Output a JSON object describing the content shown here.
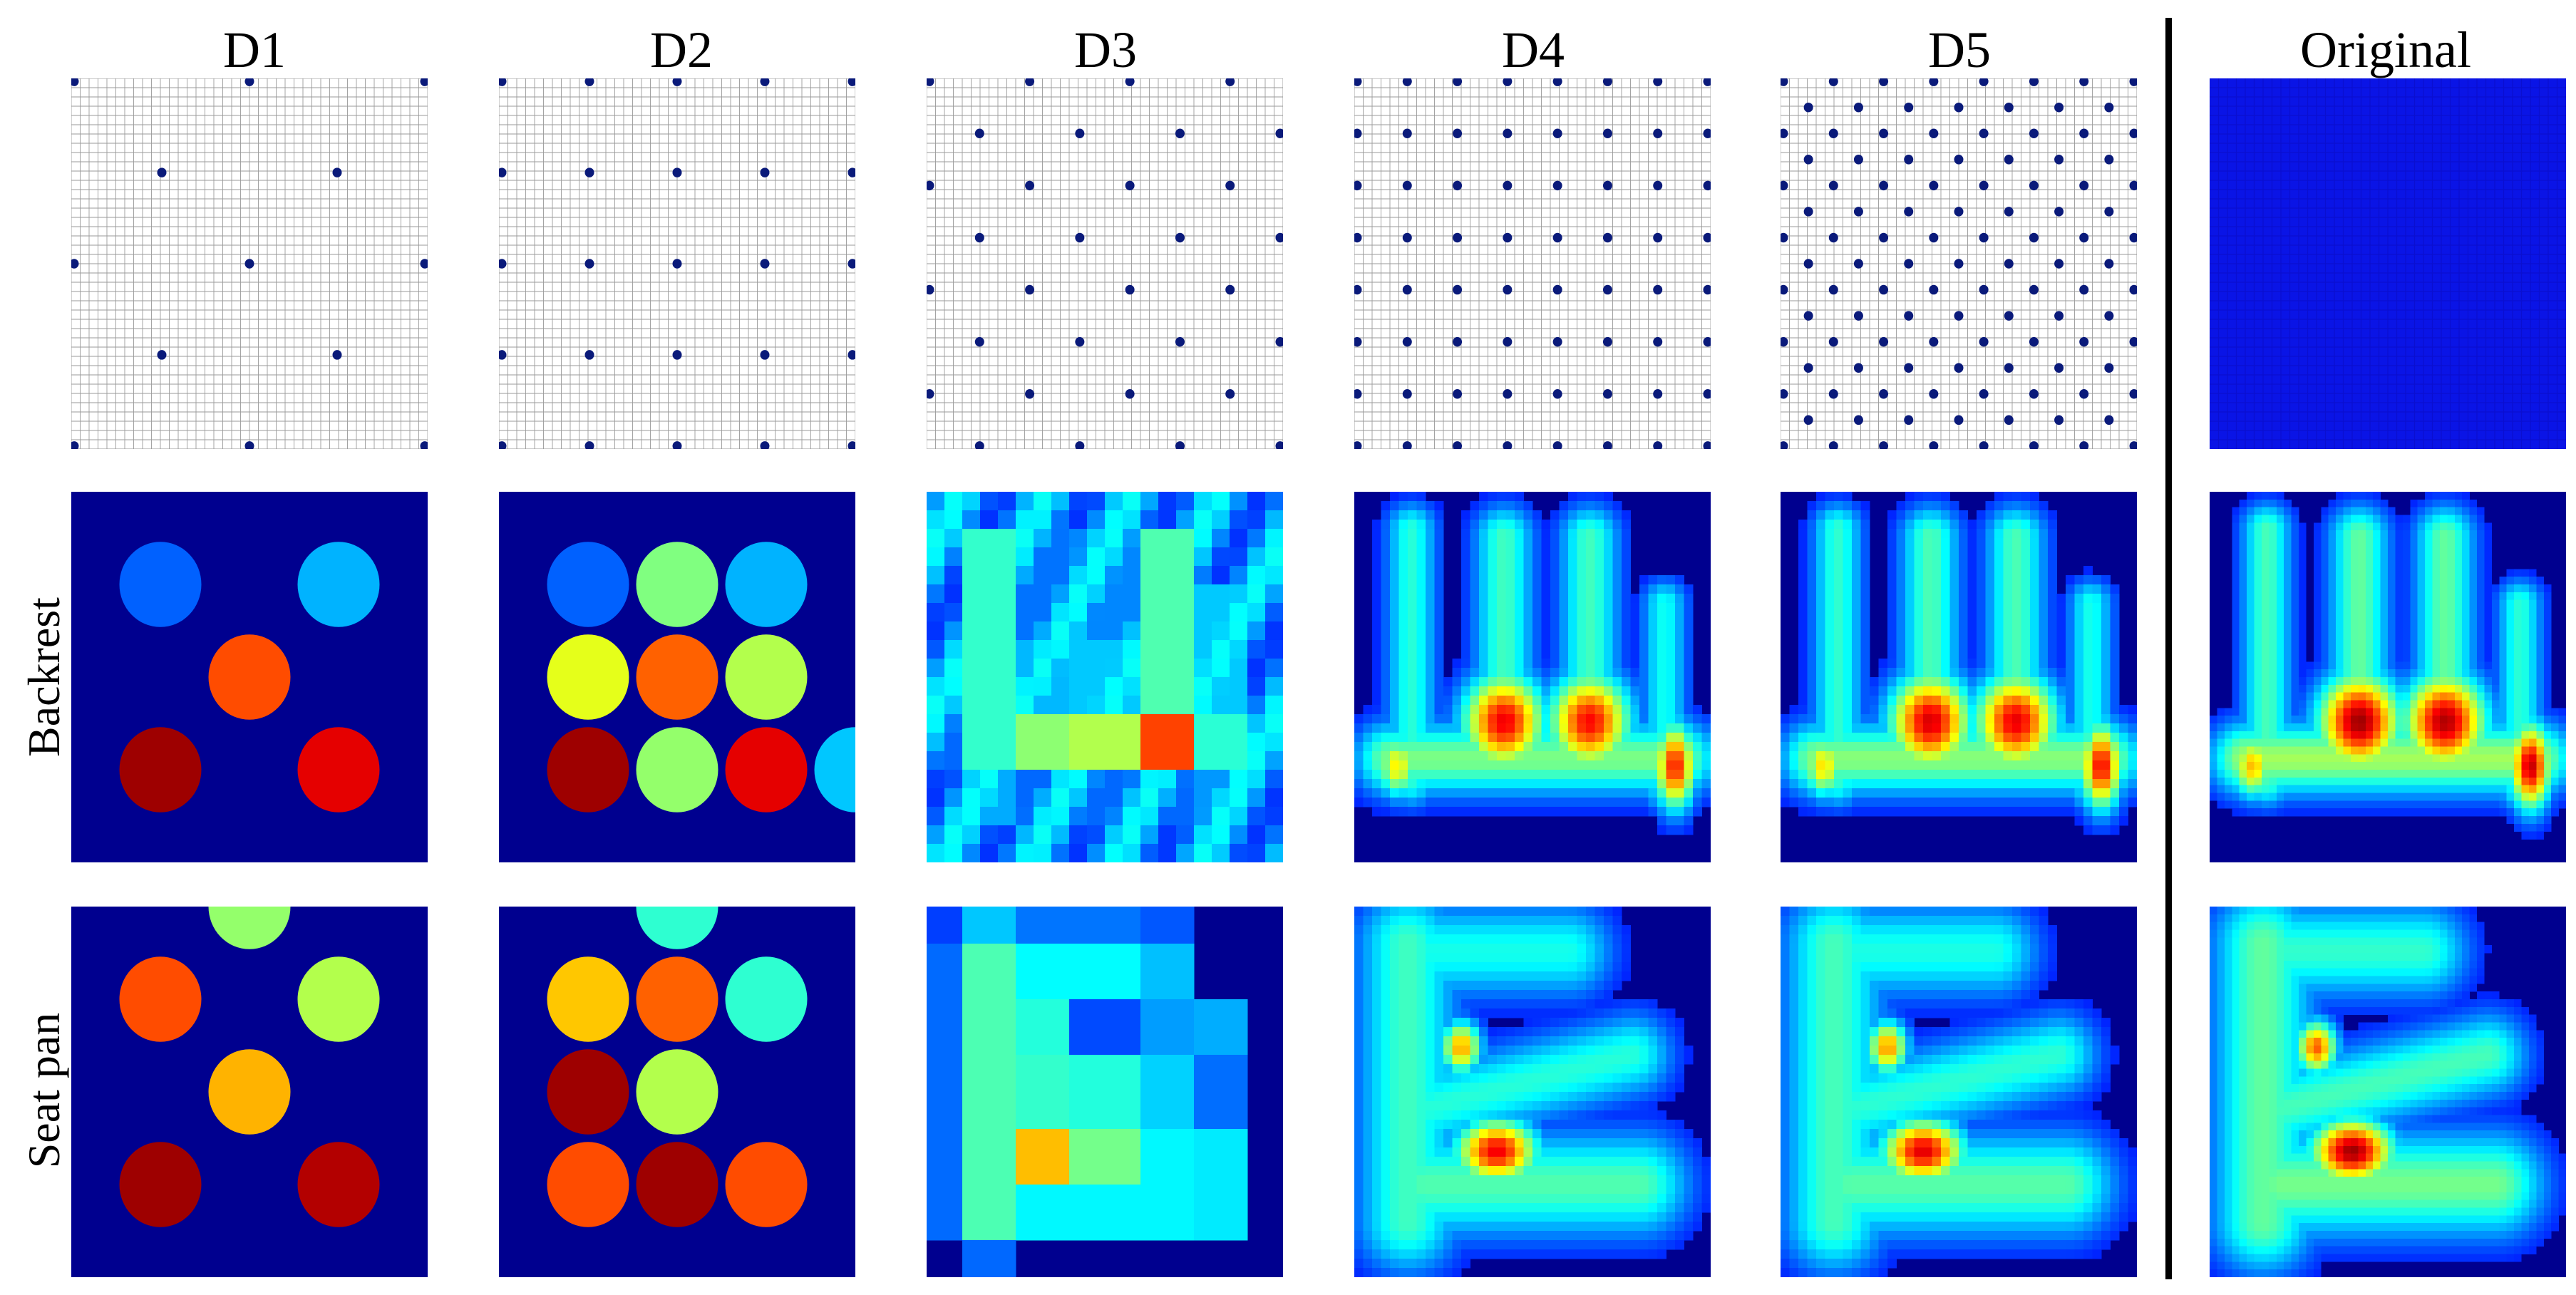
{
  "columns": [
    {
      "key": "d1",
      "title": "D1"
    },
    {
      "key": "d2",
      "title": "D2"
    },
    {
      "key": "d3",
      "title": "D3"
    },
    {
      "key": "d4",
      "title": "D4"
    },
    {
      "key": "d5",
      "title": "D5"
    },
    {
      "key": "original",
      "title": "Original"
    }
  ],
  "rows": {
    "layout": {
      "label": ""
    },
    "backrest": {
      "label": "Backrest"
    },
    "seat_pan": {
      "label": "Seat pan"
    }
  },
  "colors": {
    "grid_line": "#9a9a9a",
    "sensor_dot": "#0a1a7a",
    "background_blue": "#00008f",
    "original_layout": "#0a14e6"
  },
  "colormap": "jet",
  "layouts": {
    "d1": [
      [
        0,
        0
      ],
      [
        0.5,
        0
      ],
      [
        1,
        0
      ],
      [
        0.25,
        0.25
      ],
      [
        0.75,
        0.25
      ],
      [
        0,
        0.5
      ],
      [
        0.5,
        0.5
      ],
      [
        1,
        0.5
      ],
      [
        0.25,
        0.75
      ],
      [
        0.75,
        0.75
      ],
      [
        0,
        1
      ],
      [
        0.5,
        1
      ],
      [
        1,
        1
      ]
    ],
    "d2": [
      [
        0,
        0
      ],
      [
        0.25,
        0
      ],
      [
        0.5,
        0
      ],
      [
        0.75,
        0
      ],
      [
        1,
        0
      ],
      [
        0,
        0.25
      ],
      [
        0.25,
        0.25
      ],
      [
        0.5,
        0.25
      ],
      [
        0.75,
        0.25
      ],
      [
        1,
        0.25
      ],
      [
        0,
        0.5
      ],
      [
        0.25,
        0.5
      ],
      [
        0.5,
        0.5
      ],
      [
        0.75,
        0.5
      ],
      [
        1,
        0.5
      ],
      [
        0,
        0.75
      ],
      [
        0.25,
        0.75
      ],
      [
        0.5,
        0.75
      ],
      [
        0.75,
        0.75
      ],
      [
        1,
        0.75
      ],
      [
        0,
        1
      ],
      [
        0.25,
        1
      ],
      [
        0.5,
        1
      ],
      [
        0.75,
        1
      ],
      [
        1,
        1
      ]
    ],
    "d3_grid": 8,
    "d4_grid": 8,
    "d5_grid": 15
  },
  "discs": {
    "backrest": {
      "d1": [
        [
          0.25,
          0.25,
          0.22
        ],
        [
          0.75,
          0.25,
          0.3
        ],
        [
          0.5,
          0.5,
          0.8
        ],
        [
          0.25,
          0.75,
          0.97
        ],
        [
          0.75,
          0.75,
          0.9
        ]
      ],
      "d2": [
        [
          0.25,
          0.25,
          0.22
        ],
        [
          0.5,
          0.25,
          0.5
        ],
        [
          0.75,
          0.25,
          0.3
        ],
        [
          0.25,
          0.5,
          0.6
        ],
        [
          0.5,
          0.5,
          0.78
        ],
        [
          0.75,
          0.5,
          0.55
        ],
        [
          0.25,
          0.75,
          0.97
        ],
        [
          0.5,
          0.75,
          0.52
        ],
        [
          0.75,
          0.75,
          0.9
        ],
        [
          1.0,
          0.75,
          0.32
        ]
      ]
    },
    "seat_pan": {
      "d1": [
        [
          0.5,
          0.0,
          0.52
        ],
        [
          0.25,
          0.25,
          0.8
        ],
        [
          0.75,
          0.25,
          0.55
        ],
        [
          0.5,
          0.5,
          0.7
        ],
        [
          0.25,
          0.75,
          0.97
        ],
        [
          0.75,
          0.75,
          0.95
        ]
      ],
      "d2": [
        [
          0.5,
          0.0,
          0.42
        ],
        [
          0.25,
          0.25,
          0.68
        ],
        [
          0.5,
          0.25,
          0.78
        ],
        [
          0.75,
          0.25,
          0.42
        ],
        [
          0.25,
          0.5,
          0.97
        ],
        [
          0.5,
          0.5,
          0.55
        ],
        [
          0.25,
          0.75,
          0.8
        ],
        [
          0.5,
          0.75,
          0.97
        ],
        [
          0.75,
          0.75,
          0.8
        ]
      ]
    }
  }
}
